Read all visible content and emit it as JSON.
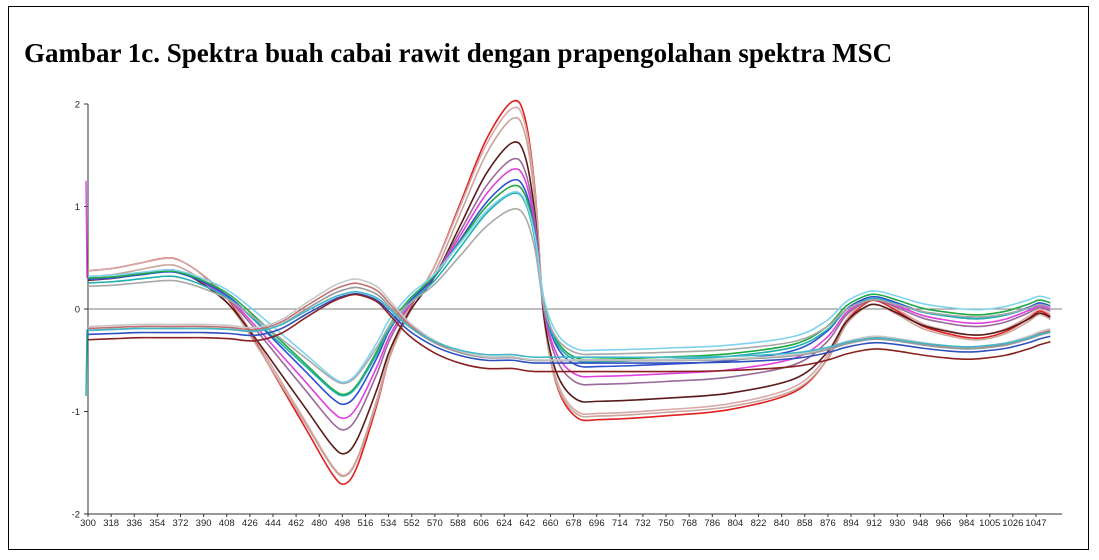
{
  "figure": {
    "title": "Gambar 1c. Spektra buah cabai rawit dengan prapengolahan spektra MSC"
  },
  "chart_data": {
    "type": "line",
    "xlabel": "",
    "ylabel": "",
    "xlim": [
      300,
      1100
    ],
    "ylim": [
      -2,
      2
    ],
    "x_ticks": [
      300,
      318,
      336,
      354,
      372,
      390,
      408,
      426,
      444,
      462,
      480,
      498,
      516,
      534,
      552,
      570,
      588,
      606,
      624,
      642,
      660,
      678,
      696,
      714,
      732,
      750,
      768,
      786,
      804,
      822,
      840,
      858,
      876,
      894,
      912,
      930,
      948,
      966,
      984,
      1005,
      1026,
      1047
    ],
    "y_ticks": [
      -2,
      -1,
      0,
      1,
      2
    ],
    "zero_line": true,
    "grid": false,
    "legend": "none",
    "x": [
      300,
      320,
      340,
      360,
      372,
      390,
      410,
      430,
      450,
      470,
      490,
      500,
      510,
      525,
      535,
      550,
      570,
      590,
      610,
      630,
      640,
      648,
      655,
      665,
      680,
      700,
      750,
      800,
      850,
      875,
      890,
      905,
      915,
      930,
      950,
      970,
      985,
      1000,
      1020,
      1040,
      1050,
      1060
    ],
    "group_a_shape": [
      0.36,
      0.38,
      0.42,
      0.46,
      0.44,
      0.32,
      0.12,
      -0.2,
      -0.55,
      -0.9,
      -1.25,
      -1.33,
      -1.18,
      -0.7,
      -0.32,
      0.05,
      0.4,
      0.9,
      1.4,
      1.7,
      1.58,
      1.0,
      0.0,
      -0.55,
      -0.8,
      -0.82,
      -0.79,
      -0.74,
      -0.6,
      -0.35,
      -0.05,
      0.1,
      0.12,
      0.04,
      -0.08,
      -0.14,
      -0.17,
      -0.17,
      -0.12,
      -0.02,
      0.04,
      0.0
    ],
    "group_b_shape": [
      -0.22,
      -0.21,
      -0.2,
      -0.2,
      -0.2,
      -0.2,
      -0.21,
      -0.23,
      -0.16,
      0.0,
      0.15,
      0.2,
      0.22,
      0.15,
      0.02,
      -0.18,
      -0.35,
      -0.45,
      -0.5,
      -0.5,
      -0.52,
      -0.53,
      -0.53,
      -0.53,
      -0.53,
      -0.53,
      -0.53,
      -0.52,
      -0.48,
      -0.42,
      -0.36,
      -0.32,
      -0.31,
      -0.33,
      -0.37,
      -0.4,
      -0.41,
      -0.4,
      -0.37,
      -0.31,
      -0.27,
      -0.24
    ],
    "series": [
      {
        "group": "a",
        "scale": 1.23,
        "offset": -0.07,
        "color": "#e02020"
      },
      {
        "group": "a",
        "scale": 1.18,
        "offset": -0.05,
        "color": "#d8a8a8"
      },
      {
        "group": "a",
        "scale": 1.15,
        "offset": -0.1,
        "color": "#c9a59a"
      },
      {
        "group": "a",
        "scale": 1.0,
        "offset": -0.08,
        "color": "#5a1a1a"
      },
      {
        "group": "a",
        "scale": 0.87,
        "offset": -0.02,
        "color": "#9a6a9a"
      },
      {
        "group": "a",
        "scale": 0.8,
        "offset": 0.0,
        "color": "#e040e0"
      },
      {
        "group": "a",
        "scale": 0.72,
        "offset": 0.03,
        "color": "#2e4fd0"
      },
      {
        "group": "a",
        "scale": 0.67,
        "offset": 0.06,
        "color": "#22aa44"
      },
      {
        "group": "a",
        "scale": 0.65,
        "offset": 0.02,
        "color": "#1fb0b0"
      },
      {
        "group": "a",
        "scale": 0.56,
        "offset": 0.02,
        "color": "#a8a8a8"
      },
      {
        "group": "a",
        "scale": 0.61,
        "offset": 0.1,
        "color": "#7fd3f0"
      },
      {
        "group": "b",
        "scale": 1.0,
        "offset": 0.03,
        "color": "#c07070"
      },
      {
        "group": "b",
        "scale": 0.95,
        "offset": 0.0,
        "color": "#9a9a9a"
      },
      {
        "group": "b",
        "scale": 1.05,
        "offset": 0.06,
        "color": "#c8c8c8"
      },
      {
        "group": "b",
        "scale": 0.9,
        "offset": -0.05,
        "color": "#3050c0"
      },
      {
        "group": "b",
        "scale": 1.0,
        "offset": -0.08,
        "color": "#8a2020"
      },
      {
        "group": "b",
        "scale": 0.85,
        "offset": -0.02,
        "color": "#40b8c8"
      }
    ]
  }
}
